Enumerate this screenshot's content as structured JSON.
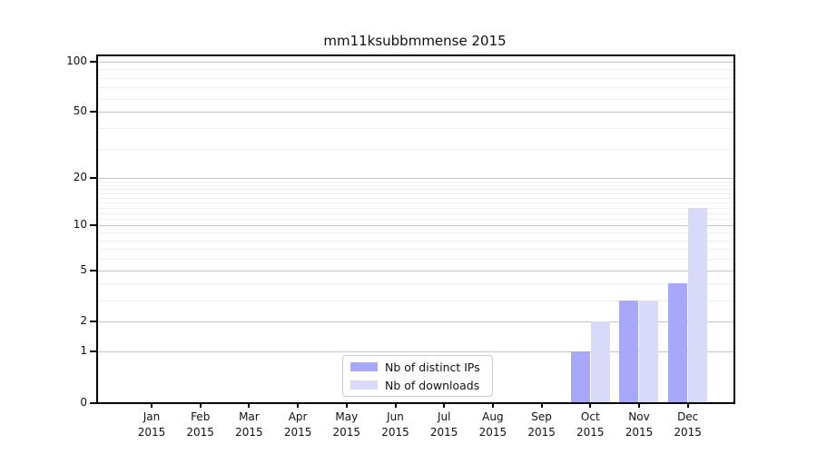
{
  "title": "mm11ksubbmmense 2015",
  "chart_data": {
    "type": "bar",
    "title": "mm11ksubbmmense 2015",
    "categories": [
      "Jan 2015",
      "Feb 2015",
      "Mar 2015",
      "Apr 2015",
      "May 2015",
      "Jun 2015",
      "Jul 2015",
      "Aug 2015",
      "Sep 2015",
      "Oct 2015",
      "Nov 2015",
      "Dec 2015"
    ],
    "series": [
      {
        "name": "Nb of distinct IPs",
        "color": "#a8a8fa",
        "values": [
          0,
          0,
          0,
          0,
          0,
          0,
          0,
          0,
          0,
          1,
          3,
          4
        ]
      },
      {
        "name": "Nb of downloads",
        "color": "#d9d9fa",
        "values": [
          0,
          0,
          0,
          0,
          0,
          0,
          0,
          0,
          0,
          2,
          3,
          13
        ]
      }
    ],
    "yscale": "log1p",
    "yticks": [
      0,
      1,
      2,
      5,
      10,
      20,
      50,
      100
    ],
    "yticks_minor": [
      3,
      4,
      6,
      7,
      8,
      9,
      11,
      12,
      13,
      14,
      15,
      16,
      17,
      18,
      19,
      30,
      40,
      60,
      70,
      80,
      90
    ],
    "ylim": [
      0,
      110
    ],
    "xlabel": "",
    "ylabel": "",
    "grid": true,
    "legend_position": "lower center (inside plot)"
  },
  "colors": {
    "bar_distinct_ips": "#a8a8fa",
    "bar_downloads": "#d9d9fa",
    "grid_major": "#c6c6c6",
    "grid_minor": "#efefef",
    "axis": "#000000",
    "background": "#ffffff"
  }
}
